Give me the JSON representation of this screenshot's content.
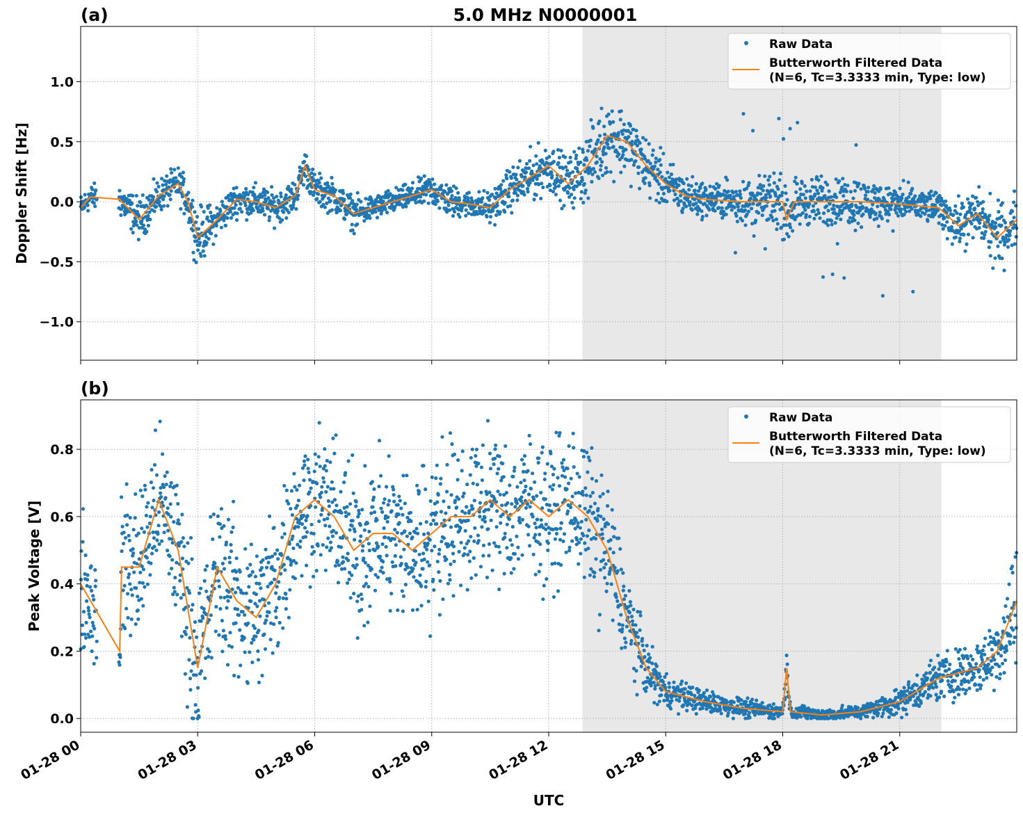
{
  "title": "5.0 MHz N0000001",
  "xlabel": "UTC",
  "x_ticks": [
    "01-28 00",
    "01-28 03",
    "01-28 06",
    "01-28 09",
    "01-28 12",
    "01-28 15",
    "01-28 18",
    "01-28 21"
  ],
  "colors": {
    "raw": "#1f77b4",
    "filtered": "#ff7f0e",
    "shade": "#e8e8e8"
  },
  "chart_data": [
    {
      "type": "scatter",
      "panel_label": "(a)",
      "ylabel": "Doppler Shift [Hz]",
      "xlim": [
        "01-28 00:00",
        "01-29 00:00"
      ],
      "ylim": [
        -1.32,
        1.46
      ],
      "y_ticks": [
        "−1.0",
        "−0.5",
        "0.0",
        "0.5",
        "1.0"
      ],
      "y_tick_values": [
        -1.0,
        -0.5,
        0.0,
        0.5,
        1.0
      ],
      "grid": true,
      "legend_position": "top-right",
      "shaded_interval": [
        "01-28 12:52",
        "01-28 22:04"
      ],
      "legend": [
        "Raw Data",
        "Butterworth Filtered Data",
        "(N=6, Tc=3.3333 min, Type: low)"
      ],
      "series": [
        {
          "name": "Butterworth Filtered Data",
          "x": [
            "01-28 00:00",
            "01-28 00:15",
            "01-28 01:00",
            "01-28 01:30",
            "01-28 02:00",
            "01-28 02:30",
            "01-28 02:45",
            "01-28 03:00",
            "01-28 03:30",
            "01-28 04:00",
            "01-28 04:30",
            "01-28 05:00",
            "01-28 05:30",
            "01-28 05:45",
            "01-28 06:00",
            "01-28 06:30",
            "01-28 07:00",
            "01-28 07:30",
            "01-28 08:00",
            "01-28 08:30",
            "01-28 09:00",
            "01-28 09:30",
            "01-28 10:00",
            "01-28 10:30",
            "01-28 11:00",
            "01-28 11:30",
            "01-28 12:00",
            "01-28 12:30",
            "01-28 13:00",
            "01-28 13:30",
            "01-28 14:00",
            "01-28 14:30",
            "01-28 15:00",
            "01-28 15:30",
            "01-28 16:00",
            "01-28 17:00",
            "01-28 18:00",
            "01-28 18:06",
            "01-28 18:18",
            "01-28 19:00",
            "01-28 20:00",
            "01-28 21:00",
            "01-28 22:00",
            "01-28 22:30",
            "01-28 23:00",
            "01-28 23:30",
            "01-29 00:00"
          ],
          "y": [
            -0.05,
            0.04,
            0.02,
            -0.15,
            0.05,
            0.15,
            0.0,
            -0.3,
            -0.15,
            0.02,
            0.0,
            -0.05,
            0.05,
            0.3,
            0.1,
            0.05,
            -0.1,
            -0.05,
            0.0,
            0.05,
            0.1,
            0.0,
            -0.02,
            -0.05,
            0.1,
            0.2,
            0.3,
            0.15,
            0.3,
            0.55,
            0.5,
            0.3,
            0.15,
            0.05,
            0.02,
            0.0,
            0.0,
            -0.15,
            0.0,
            0.0,
            0.0,
            -0.02,
            -0.05,
            -0.2,
            -0.1,
            -0.3,
            -0.15
          ]
        },
        {
          "name": "Raw Data",
          "spread": [
            0.15,
            0.15,
            0.2,
            0.25,
            0.2,
            0.2,
            0.25,
            0.35,
            0.2,
            0.2,
            0.2,
            0.2,
            0.2,
            0.2,
            0.2,
            0.2,
            0.2,
            0.15,
            0.15,
            0.15,
            0.2,
            0.2,
            0.15,
            0.2,
            0.25,
            0.3,
            0.3,
            0.3,
            0.4,
            0.45,
            0.4,
            0.35,
            0.3,
            0.25,
            0.2,
            0.25,
            0.3,
            0.3,
            0.3,
            0.3,
            0.3,
            0.2,
            0.2,
            0.3,
            0.3,
            0.4,
            0.3
          ]
        }
      ]
    },
    {
      "type": "scatter",
      "panel_label": "(b)",
      "ylabel": "Peak Voltage [V]",
      "xlim": [
        "01-28 00:00",
        "01-29 00:00"
      ],
      "ylim": [
        -0.041,
        0.947
      ],
      "y_ticks": [
        "0.0",
        "0.2",
        "0.4",
        "0.6",
        "0.8"
      ],
      "y_tick_values": [
        0.0,
        0.2,
        0.4,
        0.6,
        0.8
      ],
      "grid": true,
      "legend_position": "top-right",
      "shaded_interval": [
        "01-28 12:52",
        "01-28 22:04"
      ],
      "legend": [
        "Raw Data",
        "Butterworth Filtered Data",
        "(N=6, Tc=3.3333 min, Type: low)"
      ],
      "series": [
        {
          "name": "Butterworth Filtered Data",
          "x": [
            "01-28 00:00",
            "01-28 00:15",
            "01-28 01:00",
            "01-28 01:03",
            "01-28 01:30",
            "01-28 02:00",
            "01-28 02:30",
            "01-28 03:00",
            "01-28 03:30",
            "01-28 04:00",
            "01-28 04:30",
            "01-28 05:00",
            "01-28 05:30",
            "01-28 06:00",
            "01-28 06:30",
            "01-28 07:00",
            "01-28 07:30",
            "01-28 08:00",
            "01-28 08:30",
            "01-28 09:00",
            "01-28 09:30",
            "01-28 10:00",
            "01-28 10:30",
            "01-28 11:00",
            "01-28 11:30",
            "01-28 12:00",
            "01-28 12:30",
            "01-28 13:00",
            "01-28 13:30",
            "01-28 14:00",
            "01-28 14:30",
            "01-28 15:00",
            "01-28 16:00",
            "01-28 17:00",
            "01-28 18:00",
            "01-28 18:06",
            "01-28 18:12",
            "01-28 19:00",
            "01-28 20:00",
            "01-28 21:00",
            "01-28 22:00",
            "01-28 23:00",
            "01-28 23:30",
            "01-29 00:00"
          ],
          "y": [
            0.4,
            0.35,
            0.2,
            0.45,
            0.45,
            0.65,
            0.5,
            0.15,
            0.45,
            0.35,
            0.3,
            0.4,
            0.6,
            0.65,
            0.6,
            0.5,
            0.55,
            0.55,
            0.5,
            0.55,
            0.6,
            0.6,
            0.65,
            0.6,
            0.65,
            0.6,
            0.65,
            0.6,
            0.5,
            0.3,
            0.15,
            0.08,
            0.05,
            0.03,
            0.02,
            0.15,
            0.02,
            0.01,
            0.02,
            0.05,
            0.12,
            0.15,
            0.2,
            0.35
          ]
        },
        {
          "name": "Raw Data",
          "spread": [
            0.3,
            0.3,
            0.15,
            0.35,
            0.35,
            0.3,
            0.35,
            0.35,
            0.35,
            0.35,
            0.35,
            0.35,
            0.3,
            0.3,
            0.3,
            0.35,
            0.35,
            0.35,
            0.35,
            0.35,
            0.35,
            0.3,
            0.3,
            0.3,
            0.3,
            0.3,
            0.3,
            0.3,
            0.3,
            0.2,
            0.12,
            0.07,
            0.05,
            0.04,
            0.03,
            0.08,
            0.03,
            0.03,
            0.03,
            0.06,
            0.1,
            0.12,
            0.15,
            0.3
          ]
        }
      ]
    }
  ]
}
